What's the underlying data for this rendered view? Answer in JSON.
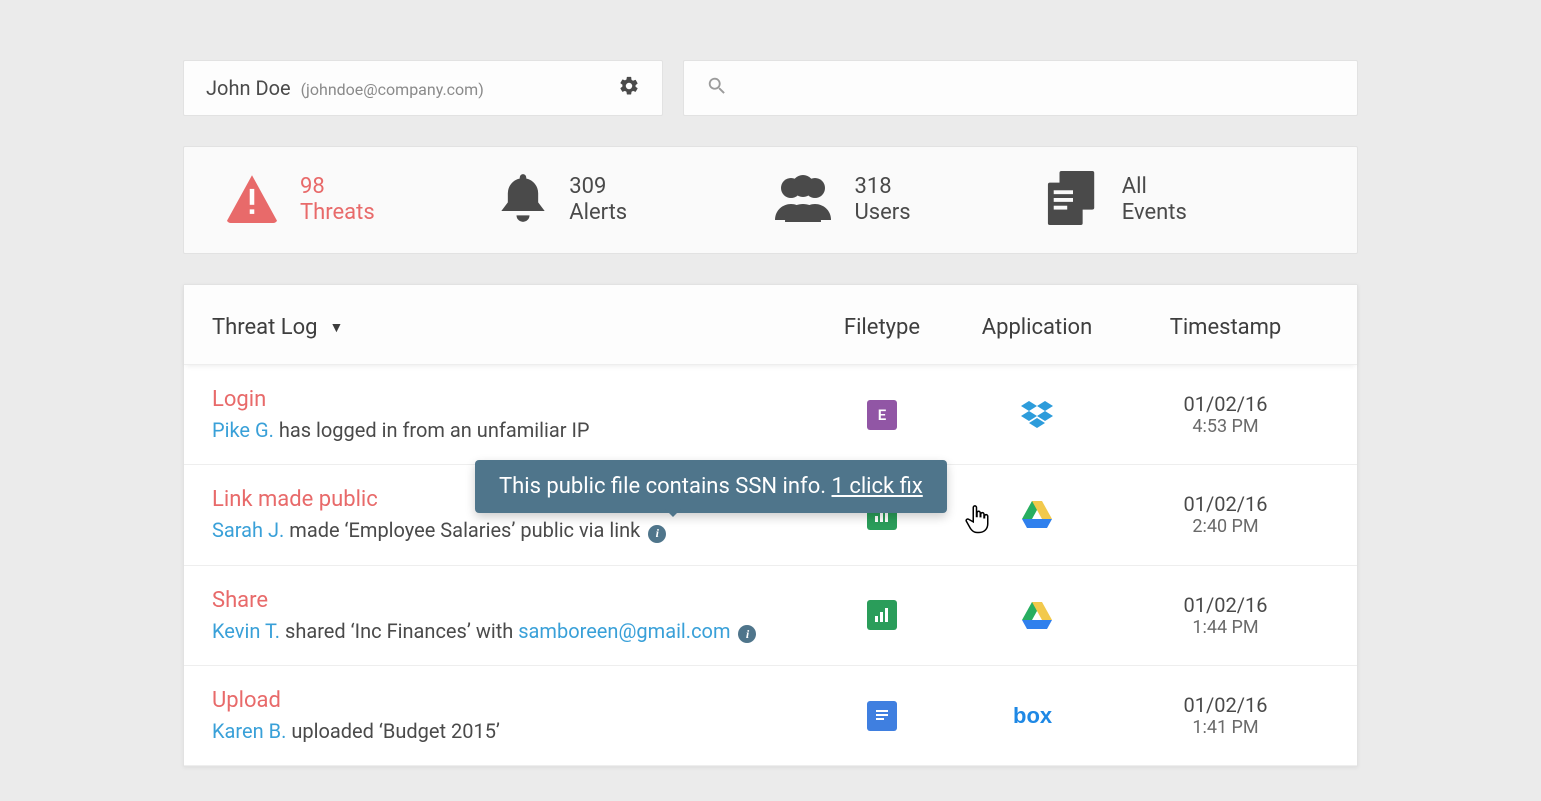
{
  "colors": {
    "page_bg": "#ebebeb",
    "card_bg": "#fdfdfd",
    "panel_bg": "#ffffff",
    "border": "#e2e2e2",
    "row_divider": "#eeeeee",
    "text": "#4a4a4a",
    "text_muted": "#8a8a8a",
    "accent_red": "#e86a6a",
    "accent_blue": "#39a0d8",
    "tooltip_bg": "#4f758b",
    "icon_dark": "#4a4a4a",
    "file_purple": "#9156a5",
    "file_green": "#2a9d5a",
    "file_blue": "#3f7fe0",
    "dropbox_blue": "#2d9cdb",
    "gdrive_green": "#27ae60",
    "gdrive_yellow": "#f2c94c",
    "gdrive_blue": "#2f80ed",
    "box_blue": "#1e88e5"
  },
  "user": {
    "name": "John Doe",
    "email": "(johndoe@company.com)"
  },
  "search": {
    "placeholder": ""
  },
  "summary": {
    "threats": {
      "count": "98",
      "label": "Threats"
    },
    "alerts": {
      "count": "309",
      "label": "Alerts"
    },
    "users": {
      "count": "318",
      "label": "Users"
    },
    "events": {
      "count": "All",
      "label": "Events"
    }
  },
  "table": {
    "columns": {
      "title": "Threat Log",
      "filetype": "Filetype",
      "application": "Application",
      "timestamp": "Timestamp"
    },
    "rows": [
      {
        "type": "Login",
        "actor": "Pike G.",
        "rest": " has logged in from an unfamiliar IP",
        "filetype_letter": "E",
        "filetype_color": "purple",
        "app": "dropbox",
        "date": "01/02/16",
        "time": "4:53 PM",
        "info": false
      },
      {
        "type": "Link made public",
        "actor": "Sarah J.",
        "rest": " made ‘Employee Salaries’ public via link",
        "filetype_letter": "",
        "filetype_color": "green",
        "app": "gdrive",
        "date": "01/02/16",
        "time": "2:40 PM",
        "info": true
      },
      {
        "type": "Share",
        "actor": "Kevin T.",
        "rest": " shared ‘Inc Finances’ with ",
        "link": "samboreen@gmail.com",
        "filetype_letter": "",
        "filetype_color": "green",
        "app": "gdrive",
        "date": "01/02/16",
        "time": "1:44 PM",
        "info": true
      },
      {
        "type": "Upload",
        "actor": "Karen B.",
        "rest": " uploaded ‘Budget 2015’",
        "filetype_letter": "",
        "filetype_color": "blue",
        "app": "box",
        "date": "01/02/16",
        "time": "1:41 PM",
        "info": false
      }
    ]
  },
  "tooltip": {
    "text": "This public file contains SSN info. ",
    "action": "1 click fix"
  }
}
